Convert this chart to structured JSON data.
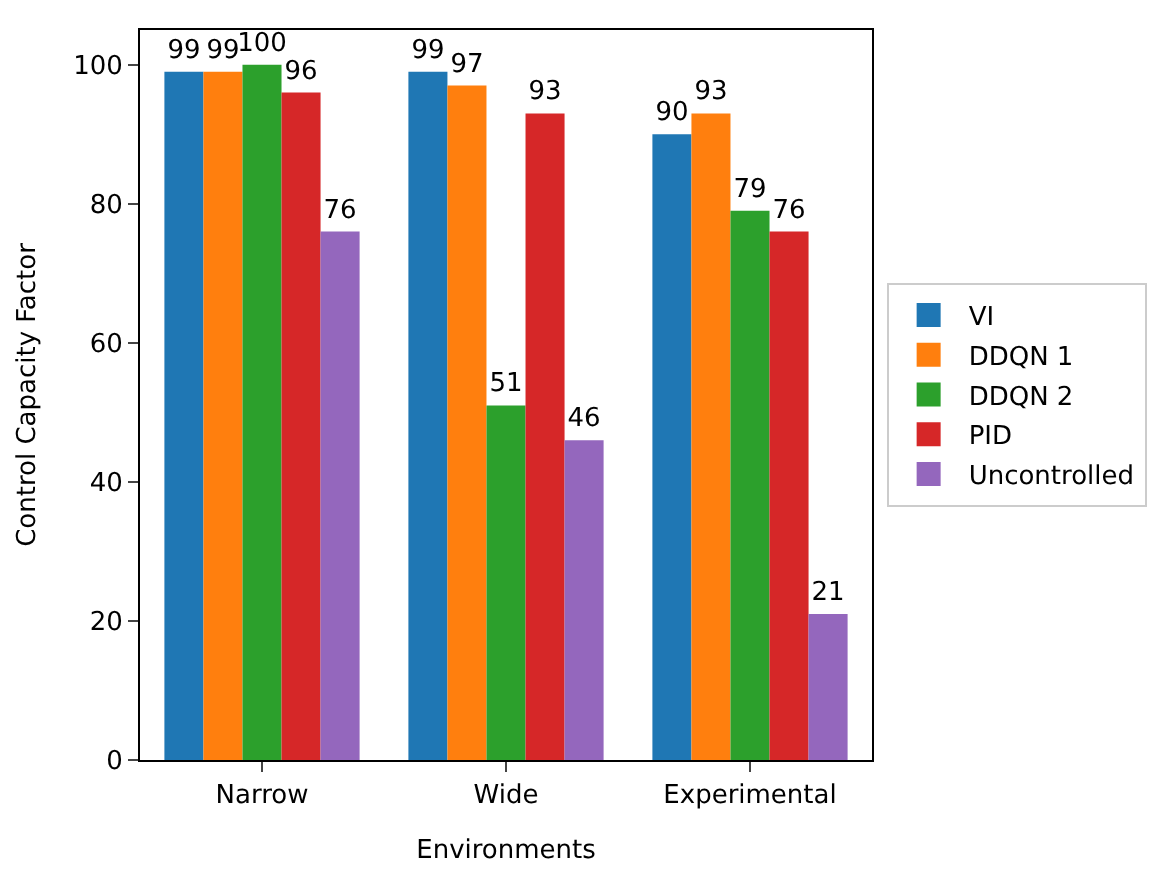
{
  "chart_data": {
    "type": "bar",
    "xlabel": "Environments",
    "ylabel": "Control Capacity Factor",
    "categories": [
      "Narrow",
      "Wide",
      "Experimental"
    ],
    "series": [
      {
        "name": "VI",
        "color": "#1f77b4",
        "values": [
          99,
          99,
          90
        ]
      },
      {
        "name": "DDQN 1",
        "color": "#ff7f0e",
        "values": [
          99,
          97,
          93
        ]
      },
      {
        "name": "DDQN 2",
        "color": "#2ca02c",
        "values": [
          100,
          51,
          79
        ]
      },
      {
        "name": "PID",
        "color": "#d62728",
        "values": [
          96,
          93,
          76
        ]
      },
      {
        "name": "Uncontrolled",
        "color": "#9467bd",
        "values": [
          76,
          46,
          21
        ]
      }
    ],
    "ylim": [
      0,
      105
    ],
    "yticks": [
      0,
      20,
      40,
      60,
      80,
      100
    ],
    "data_labels": true,
    "legend": "right"
  }
}
